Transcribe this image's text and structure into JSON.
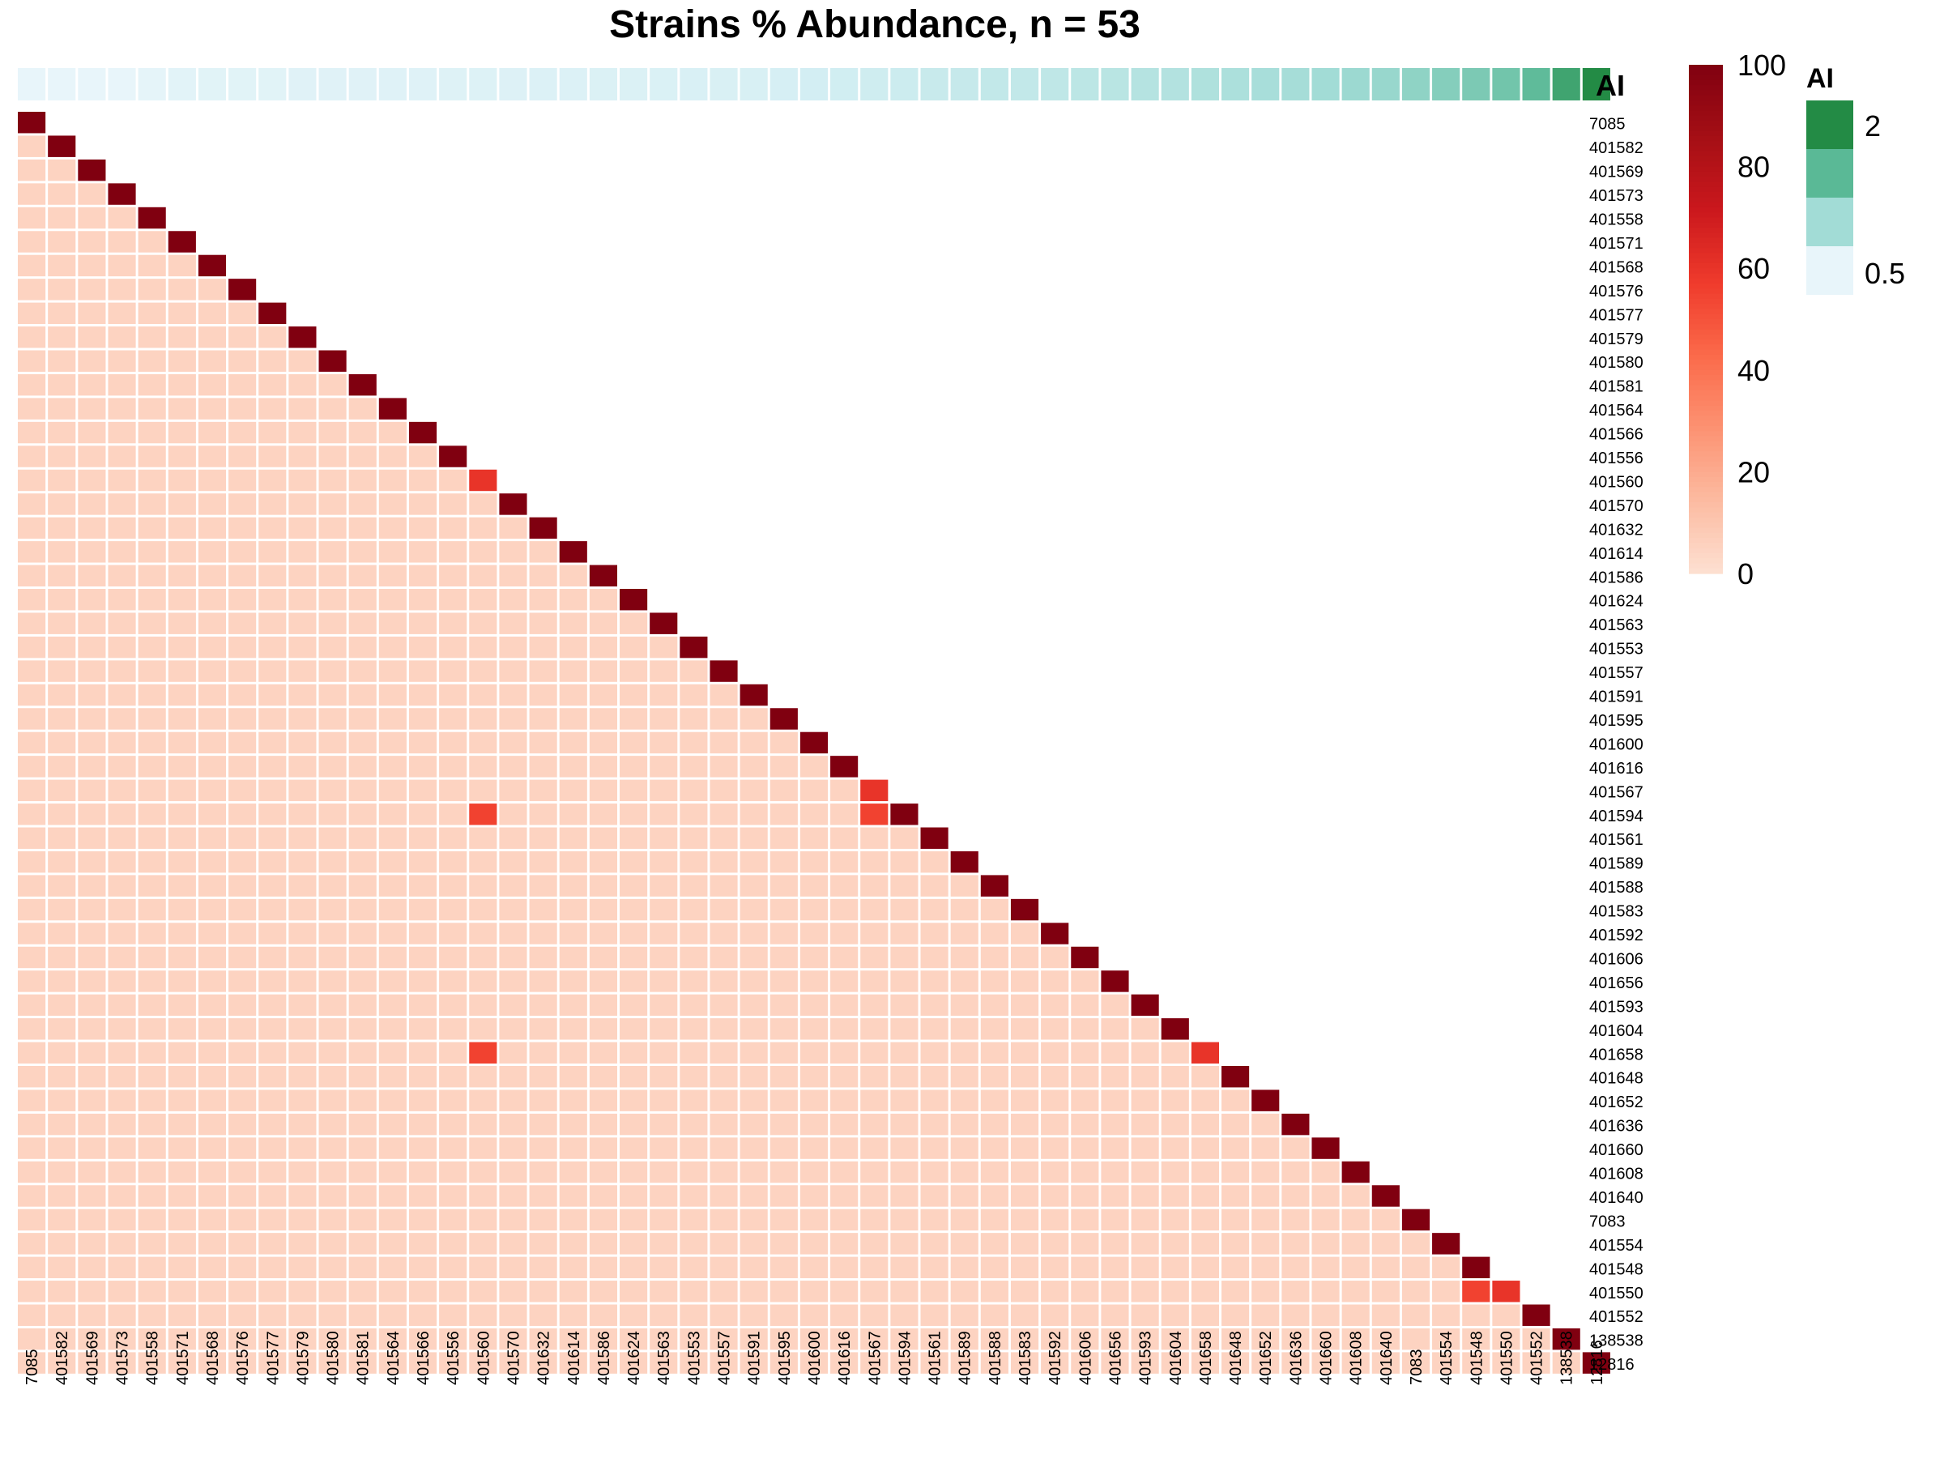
{
  "chart_data": {
    "type": "heatmap",
    "title": "Strains % Abundance, n = 53",
    "strains": [
      "7085",
      "401582",
      "401569",
      "401573",
      "401558",
      "401571",
      "401568",
      "401576",
      "401577",
      "401579",
      "401580",
      "401581",
      "401564",
      "401566",
      "401556",
      "401560",
      "401570",
      "401632",
      "401614",
      "401586",
      "401624",
      "401563",
      "401553",
      "401557",
      "401591",
      "401595",
      "401600",
      "401616",
      "401567",
      "401594",
      "401561",
      "401589",
      "401588",
      "401583",
      "401592",
      "401606",
      "401656",
      "401593",
      "401604",
      "401658",
      "401648",
      "401652",
      "401636",
      "401660",
      "401608",
      "401640",
      "7083",
      "401554",
      "401548",
      "401550",
      "401552",
      "138538",
      "12816"
    ],
    "background_value": 5,
    "diagonal_value": 100,
    "off_diagonal": [
      {
        "row": "401560",
        "col": "401560",
        "value": 60
      },
      {
        "row": "401594",
        "col": "401560",
        "value": 55
      },
      {
        "row": "401567",
        "col": "401567",
        "value": 60
      },
      {
        "row": "401594",
        "col": "401567",
        "value": 55
      },
      {
        "row": "401658",
        "col": "401560",
        "value": 55
      },
      {
        "row": "401658",
        "col": "401658",
        "value": 60
      },
      {
        "row": "401550",
        "col": "401548",
        "value": 55
      },
      {
        "row": "401550",
        "col": "401550",
        "value": 60
      }
    ],
    "colorbar": {
      "ticks": [
        "100",
        "80",
        "60",
        "40",
        "20",
        "0"
      ],
      "range": [
        0,
        100
      ],
      "colors": [
        "#fde0d2",
        "#fcbba1",
        "#fc9272",
        "#fb6a4a",
        "#ef3b2c",
        "#cb181d",
        "#a50f15",
        "#800010"
      ]
    },
    "annotation": {
      "label": "AI",
      "values": [
        0.5,
        0.5,
        0.5,
        0.5,
        0.55,
        0.6,
        0.62,
        0.62,
        0.62,
        0.64,
        0.64,
        0.64,
        0.65,
        0.66,
        0.67,
        0.68,
        0.69,
        0.7,
        0.7,
        0.72,
        0.72,
        0.74,
        0.75,
        0.76,
        0.78,
        0.8,
        0.85,
        0.88,
        0.9,
        0.92,
        0.95,
        0.97,
        1.0,
        1.0,
        1.02,
        1.05,
        1.07,
        1.1,
        1.12,
        1.15,
        1.17,
        1.2,
        1.22,
        1.25,
        1.28,
        1.3,
        1.35,
        1.4,
        1.45,
        1.5,
        1.6,
        1.8,
        2.0
      ],
      "legend": {
        "title": "AI",
        "ticks": [
          "2",
          "0.5"
        ],
        "colors": [
          "#238b45",
          "#5ab996",
          "#a2dcd6",
          "#e8f5fa"
        ]
      }
    }
  }
}
